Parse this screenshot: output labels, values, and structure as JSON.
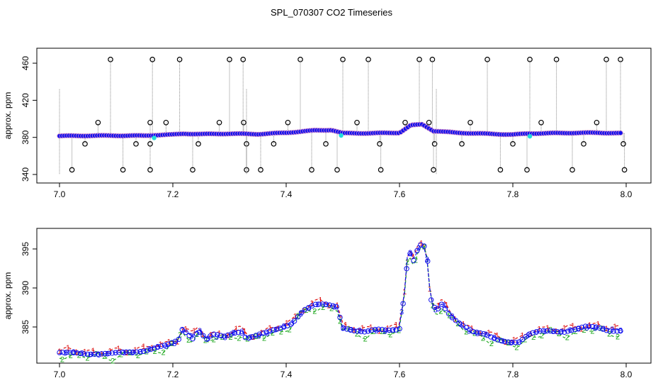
{
  "title": "SPL_070307  CO2 Timeseries",
  "colors": {
    "pink_outline": "#cc88cc",
    "blue": "#1010ee",
    "green": "#22aa22",
    "red": "#dd1111",
    "cyan": "#22dddd",
    "gray": "#888888",
    "black": "#000000"
  },
  "chart_data": [
    {
      "type": "scatter",
      "ylabel": "approx. ppm",
      "xlim": [
        7.0,
        8.0
      ],
      "ylim": [
        340,
        470
      ],
      "x_ticks": [
        "7.0",
        "7.2",
        "7.4",
        "7.6",
        "7.8",
        "8.0"
      ],
      "y_ticks": [
        "340",
        "380",
        "420",
        "460"
      ],
      "baseline_points": [
        [
          7.0,
          381.5
        ],
        [
          7.05,
          381.8
        ],
        [
          7.1,
          381.9
        ],
        [
          7.15,
          381.8
        ],
        [
          7.17,
          382.5
        ],
        [
          7.2,
          383.0
        ],
        [
          7.22,
          384.0
        ],
        [
          7.25,
          383.5
        ],
        [
          7.3,
          384.0
        ],
        [
          7.35,
          383.5
        ],
        [
          7.4,
          385.0
        ],
        [
          7.45,
          387.5
        ],
        [
          7.48,
          388.0
        ],
        [
          7.5,
          384.5
        ],
        [
          7.55,
          384.5
        ],
        [
          7.6,
          385.0
        ],
        [
          7.62,
          393.0
        ],
        [
          7.64,
          394.0
        ],
        [
          7.66,
          387.0
        ],
        [
          7.7,
          385.0
        ],
        [
          7.75,
          384.0
        ],
        [
          7.8,
          383.0
        ],
        [
          7.83,
          384.2
        ],
        [
          7.9,
          384.8
        ],
        [
          7.95,
          385.0
        ],
        [
          7.99,
          384.5
        ]
      ],
      "outliers_high": [
        7.09,
        7.164,
        7.212,
        7.3,
        7.324,
        7.425,
        7.5,
        7.545,
        7.635,
        7.658,
        7.755,
        7.83,
        7.877,
        7.965,
        7.99
      ],
      "outliers_low": [
        7.022,
        7.112,
        7.16,
        7.235,
        7.33,
        7.355,
        7.445,
        7.49,
        7.567,
        7.66,
        7.778,
        7.825,
        7.905,
        7.997
      ],
      "outliers_mid_high": [
        7.068,
        7.16,
        7.188,
        7.282,
        7.325,
        7.403,
        7.525,
        7.61,
        7.652,
        7.725,
        7.85,
        7.948
      ],
      "outliers_mid_low": [
        7.045,
        7.135,
        7.16,
        7.245,
        7.33,
        7.378,
        7.47,
        7.565,
        7.662,
        7.71,
        7.8,
        7.925,
        7.995
      ]
    },
    {
      "type": "line",
      "ylabel": "approx. ppm",
      "xlim": [
        7.0,
        8.0
      ],
      "ylim": [
        381,
        397
      ],
      "x_ticks": [
        "7.0",
        "7.2",
        "7.4",
        "7.6",
        "7.8",
        "8.0"
      ],
      "y_ticks": [
        "385",
        "390",
        "395"
      ],
      "series": [
        {
          "marker": "3",
          "points": [
            [
              7.0,
              381.6
            ],
            [
              7.03,
              381.7
            ],
            [
              7.06,
              381.6
            ],
            [
              7.09,
              381.5
            ],
            [
              7.12,
              381.8
            ],
            [
              7.15,
              382.0
            ],
            [
              7.17,
              382.3
            ],
            [
              7.19,
              382.6
            ],
            [
              7.21,
              383.3
            ],
            [
              7.215,
              384.8
            ],
            [
              7.225,
              384.3
            ],
            [
              7.235,
              383.6
            ],
            [
              7.245,
              384.6
            ],
            [
              7.26,
              383.4
            ],
            [
              7.27,
              384.0
            ],
            [
              7.29,
              383.7
            ],
            [
              7.31,
              384.3
            ],
            [
              7.32,
              384.5
            ],
            [
              7.33,
              383.6
            ],
            [
              7.35,
              384.0
            ],
            [
              7.37,
              384.3
            ],
            [
              7.39,
              384.8
            ],
            [
              7.41,
              385.5
            ],
            [
              7.43,
              387.2
            ],
            [
              7.45,
              387.8
            ],
            [
              7.47,
              387.8
            ],
            [
              7.49,
              387.6
            ],
            [
              7.5,
              385.0
            ],
            [
              7.52,
              384.6
            ],
            [
              7.54,
              384.3
            ],
            [
              7.56,
              384.6
            ],
            [
              7.58,
              384.6
            ],
            [
              7.6,
              384.8
            ],
            [
              7.61,
              390.0
            ],
            [
              7.615,
              395.0
            ],
            [
              7.625,
              393.5
            ],
            [
              7.635,
              395.5
            ],
            [
              7.645,
              395.2
            ],
            [
              7.65,
              393.2
            ],
            [
              7.655,
              388.5
            ],
            [
              7.665,
              387.0
            ],
            [
              7.675,
              388.0
            ],
            [
              7.69,
              386.5
            ],
            [
              7.71,
              385.3
            ],
            [
              7.73,
              384.3
            ],
            [
              7.75,
              384.0
            ],
            [
              7.77,
              383.5
            ],
            [
              7.79,
              383.2
            ],
            [
              7.81,
              383.0
            ],
            [
              7.83,
              384.0
            ],
            [
              7.85,
              384.5
            ],
            [
              7.87,
              384.6
            ],
            [
              7.89,
              384.4
            ],
            [
              7.91,
              384.6
            ],
            [
              7.93,
              385.0
            ],
            [
              7.95,
              385.0
            ],
            [
              7.97,
              384.6
            ],
            [
              7.99,
              384.5
            ]
          ]
        },
        {
          "marker": "1",
          "offset": 0.6
        },
        {
          "marker": "2",
          "offset": -0.7
        }
      ]
    }
  ]
}
